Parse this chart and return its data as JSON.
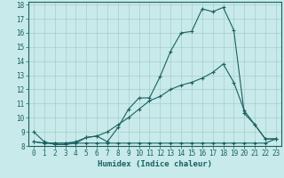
{
  "xlabel": "Humidex (Indice chaleur)",
  "bg_color": "#c8eaea",
  "grid_color": "#a8cccc",
  "line_color": "#1a6060",
  "xlim": [
    -0.5,
    23.5
  ],
  "ylim": [
    8,
    18.2
  ],
  "xticks": [
    0,
    1,
    2,
    3,
    4,
    5,
    6,
    7,
    8,
    9,
    10,
    11,
    12,
    13,
    14,
    15,
    16,
    17,
    18,
    19,
    20,
    21,
    22,
    23
  ],
  "yticks": [
    8,
    9,
    10,
    11,
    12,
    13,
    14,
    15,
    16,
    17,
    18
  ],
  "line1_x": [
    0,
    1,
    2,
    3,
    4,
    5,
    6,
    7,
    8,
    9,
    10,
    11,
    12,
    13,
    14,
    15,
    16,
    17,
    18,
    19,
    20,
    21,
    22,
    23
  ],
  "line1_y": [
    9.0,
    8.3,
    8.1,
    8.1,
    8.2,
    8.6,
    8.7,
    8.3,
    9.3,
    10.6,
    11.4,
    11.4,
    12.9,
    14.7,
    16.0,
    16.1,
    17.7,
    17.5,
    17.8,
    16.2,
    10.3,
    9.5,
    8.5,
    8.5
  ],
  "line2_x": [
    0,
    1,
    2,
    3,
    4,
    5,
    6,
    7,
    8,
    9,
    10,
    11,
    12,
    13,
    14,
    15,
    16,
    17,
    18,
    19,
    20,
    21,
    22,
    23
  ],
  "line2_y": [
    8.3,
    8.2,
    8.2,
    8.2,
    8.2,
    8.2,
    8.2,
    8.2,
    8.2,
    8.2,
    8.2,
    8.2,
    8.2,
    8.2,
    8.2,
    8.2,
    8.2,
    8.2,
    8.2,
    8.2,
    8.2,
    8.2,
    8.2,
    8.5
  ],
  "line3_x": [
    0,
    1,
    2,
    3,
    4,
    5,
    6,
    7,
    8,
    9,
    10,
    11,
    12,
    13,
    14,
    15,
    16,
    17,
    18,
    19,
    20,
    21,
    22,
    23
  ],
  "line3_y": [
    8.3,
    8.2,
    8.2,
    8.2,
    8.3,
    8.6,
    8.7,
    9.0,
    9.5,
    10.0,
    10.6,
    11.2,
    11.5,
    12.0,
    12.3,
    12.5,
    12.8,
    13.2,
    13.8,
    12.5,
    10.5,
    9.5,
    8.5,
    8.5
  ],
  "xlabel_fontsize": 5.5,
  "tick_fontsize": 5.5,
  "label_fontsize": 6.5
}
